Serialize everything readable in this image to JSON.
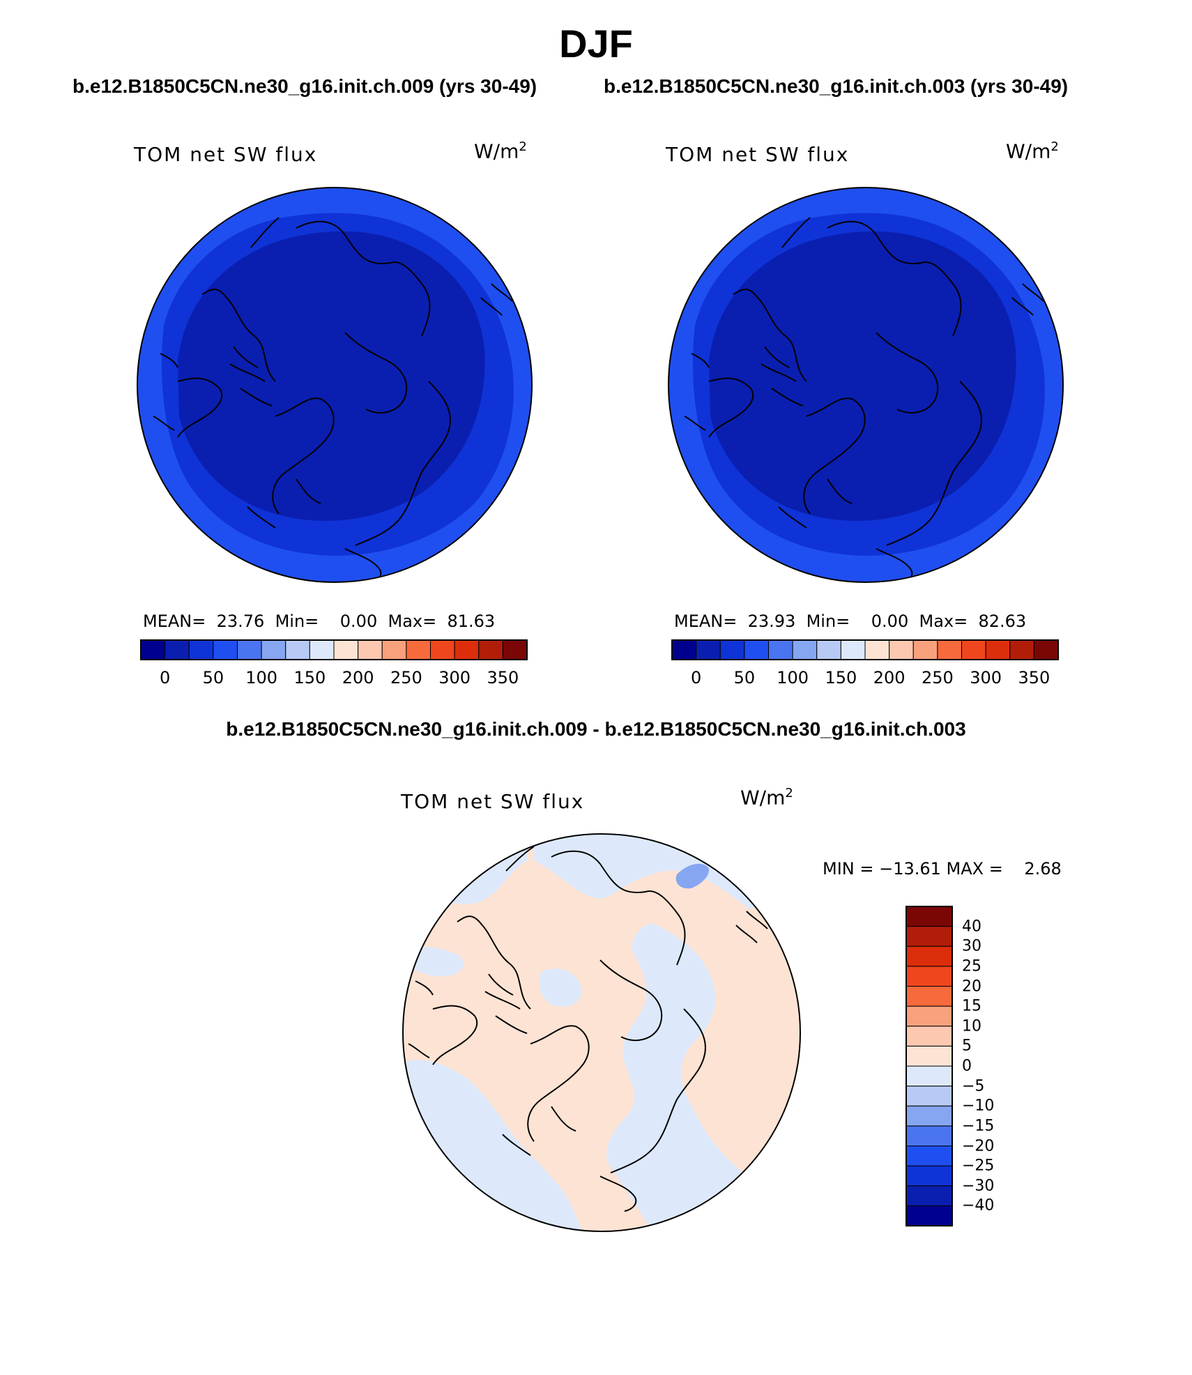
{
  "figure": {
    "title": "DJF",
    "left_case": "b.e12.B1850C5CN.ne30_g16.init.ch.009 (yrs 30-49)",
    "right_case": "b.e12.B1850C5CN.ne30_g16.init.ch.003 (yrs 30-49)",
    "diff_title": "b.e12.B1850C5CN.ne30_g16.init.ch.009 - b.e12.B1850C5CN.ne30_g16.init.ch.003"
  },
  "panels": {
    "left": {
      "variable": "TOM net SW flux",
      "units": "W/m",
      "units_exp": "2",
      "stats": "MEAN=  23.76  Min=    0.00  Max=  81.63"
    },
    "right": {
      "variable": "TOM net SW flux",
      "units": "W/m",
      "units_exp": "2",
      "stats": "MEAN=  23.93  Min=    0.00  Max=  82.63"
    },
    "diff": {
      "variable": "TOM net SW flux",
      "units": "W/m",
      "units_exp": "2",
      "stats": "MIN = −13.61 MAX =    2.68"
    }
  },
  "colorbar_abs": {
    "colors": [
      "#00008f",
      "#0a1fb0",
      "#0f33d6",
      "#1f4ff0",
      "#4a74f0",
      "#86a6f2",
      "#b7c9f5",
      "#dde9fb",
      "#fde3d3",
      "#fcc8b0",
      "#f9a07c",
      "#f76a3c",
      "#f0461d",
      "#dc2e0b",
      "#b11d08",
      "#7a0606"
    ],
    "labels": [
      "0",
      "50",
      "100",
      "150",
      "200",
      "250",
      "300",
      "350"
    ]
  },
  "colorbar_diff": {
    "colors": [
      "#7a0606",
      "#b11d08",
      "#dc2e0b",
      "#f0461d",
      "#f76a3c",
      "#f9a07c",
      "#fcc8b0",
      "#fde3d3",
      "#dde9fb",
      "#b7c9f5",
      "#86a6f2",
      "#4a74f0",
      "#1f4ff0",
      "#0f33d6",
      "#0a1fb0",
      "#00008f"
    ],
    "labels": [
      "40",
      "30",
      "25",
      "20",
      "15",
      "10",
      "5",
      "0",
      "−5",
      "−10",
      "−15",
      "−20",
      "−25",
      "−30",
      "−40"
    ]
  },
  "map_colors": {
    "abs_outer": "#1f4ff0",
    "abs_mid": "#0f33d6",
    "abs_inner": "#0a1fb0",
    "diff_pos": "#fde3d3",
    "diff_neg": "#dde9fb",
    "diff_neg2": "#86a6f2"
  }
}
